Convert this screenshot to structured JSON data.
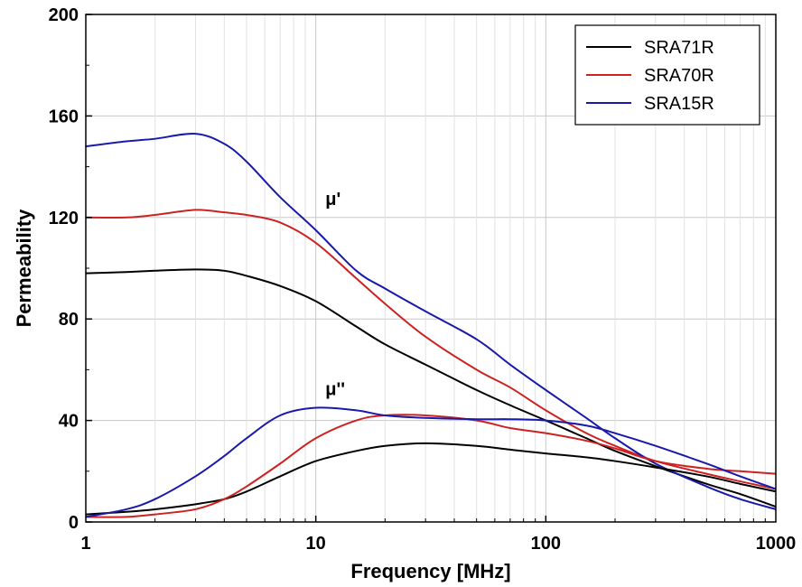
{
  "chart_data": {
    "type": "line",
    "title": "",
    "xlabel": "Frequency [MHz]",
    "ylabel": "Permeability",
    "xscale": "log",
    "xlim": [
      1,
      1000
    ],
    "ylim": [
      0,
      200
    ],
    "x_ticks": [
      1,
      10,
      100,
      1000
    ],
    "x_tick_labels": [
      "1",
      "10",
      "100",
      "1000"
    ],
    "y_ticks": [
      0,
      40,
      80,
      120,
      160,
      200
    ],
    "y_tick_labels": [
      "0",
      "40",
      "80",
      "120",
      "160",
      "200"
    ],
    "grid": true,
    "legend_position": "top-right",
    "annotations": [
      {
        "text": "μ'",
        "x": 11,
        "y": 125
      },
      {
        "text": "μ''",
        "x": 11,
        "y": 50
      }
    ],
    "series": [
      {
        "name": "SRA71R",
        "component": "mu_prime",
        "color": "#000000",
        "x": [
          1,
          1.5,
          2,
          3,
          4,
          5,
          7,
          10,
          15,
          20,
          30,
          50,
          70,
          100,
          150,
          200,
          300,
          500,
          700,
          1000
        ],
        "y": [
          98,
          98.5,
          99,
          99.5,
          99,
          97,
          93,
          87,
          77,
          70,
          62,
          52,
          46,
          40,
          33,
          28,
          22,
          15,
          11,
          6
        ]
      },
      {
        "name": "SRA70R",
        "component": "mu_prime",
        "color": "#cc2222",
        "x": [
          1,
          1.5,
          2,
          3,
          4,
          5,
          7,
          10,
          15,
          20,
          30,
          50,
          70,
          100,
          150,
          200,
          300,
          500,
          700,
          1000
        ],
        "y": [
          120,
          120,
          121,
          123,
          122,
          121,
          118,
          110,
          96,
          86,
          73,
          60,
          53,
          44,
          35,
          30,
          24,
          19,
          16,
          13
        ]
      },
      {
        "name": "SRA15R",
        "component": "mu_prime",
        "color": "#1a1aaa",
        "x": [
          1,
          1.5,
          2,
          3,
          4,
          5,
          7,
          10,
          15,
          20,
          30,
          50,
          70,
          100,
          150,
          200,
          300,
          500,
          700,
          1000
        ],
        "y": [
          148,
          150,
          151,
          153,
          149,
          142,
          128,
          115,
          99,
          92,
          83,
          72,
          62,
          52,
          41,
          33,
          23,
          14,
          9,
          5
        ]
      },
      {
        "name": "SRA71R",
        "component": "mu_double_prime",
        "color": "#000000",
        "x": [
          1,
          1.5,
          2,
          3,
          4,
          5,
          7,
          10,
          15,
          20,
          30,
          50,
          70,
          100,
          150,
          200,
          300,
          500,
          700,
          1000
        ],
        "y": [
          3,
          4,
          5,
          7,
          9,
          12,
          18,
          24,
          28,
          30,
          31,
          30,
          28.5,
          27,
          25.5,
          24,
          21.5,
          18,
          15,
          12
        ]
      },
      {
        "name": "SRA70R",
        "component": "mu_double_prime",
        "color": "#cc2222",
        "x": [
          1,
          1.5,
          2,
          3,
          4,
          5,
          7,
          10,
          15,
          20,
          30,
          50,
          70,
          100,
          150,
          200,
          300,
          500,
          700,
          1000
        ],
        "y": [
          2,
          2,
          3,
          5,
          9,
          14,
          23,
          33,
          40,
          42,
          42,
          40,
          37,
          35,
          32,
          29,
          24,
          21,
          20,
          19
        ]
      },
      {
        "name": "SRA15R",
        "component": "mu_double_prime",
        "color": "#1a1aaa",
        "x": [
          1,
          1.5,
          2,
          3,
          4,
          5,
          7,
          10,
          15,
          20,
          30,
          50,
          70,
          100,
          150,
          200,
          300,
          500,
          700,
          1000
        ],
        "y": [
          2,
          5,
          9,
          18,
          26,
          33,
          42,
          45,
          44,
          42,
          41,
          40.5,
          40.5,
          40,
          38,
          35,
          30,
          23,
          18,
          13
        ]
      }
    ],
    "legend": [
      {
        "label": "SRA71R",
        "color": "#000000"
      },
      {
        "label": "SRA70R",
        "color": "#cc2222"
      },
      {
        "label": "SRA15R",
        "color": "#1a1aaa"
      }
    ]
  }
}
